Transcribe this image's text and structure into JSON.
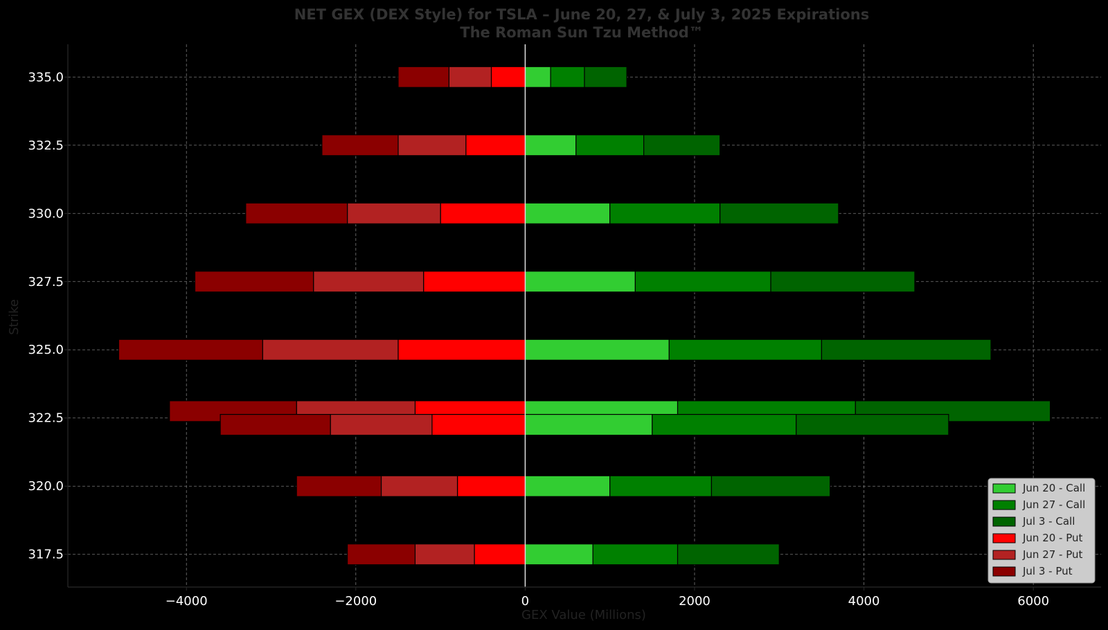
{
  "chart_data": {
    "type": "bar",
    "orientation": "horizontal",
    "stacked": true,
    "title": "NET GEX (DEX Style) for TSLA – June 20, 27, & July 3, 2025 Expirations",
    "subtitle": "The Roman Sun Tzu Method™",
    "xlabel": "GEX Value (Millions)",
    "ylabel": "Strike",
    "xlim": [
      -5400,
      6800
    ],
    "ylim": [
      316.3,
      336.2
    ],
    "xticks": [
      -4000,
      -2000,
      0,
      2000,
      4000,
      6000
    ],
    "xtick_labels": [
      "−4000",
      "−2000",
      "0",
      "2000",
      "4000",
      "6000"
    ],
    "yticks": [
      335.0,
      332.5,
      330.0,
      327.5,
      325.0,
      322.5,
      320.0,
      317.5
    ],
    "ytick_labels": [
      "335.0",
      "332.5",
      "330.0",
      "327.5",
      "325.0",
      "322.5",
      "320.0",
      "317.5"
    ],
    "grid": true,
    "legend_position": "lower-right",
    "groups": [
      {
        "strike": 335.0,
        "offset": 0,
        "calls": [
          300,
          400,
          500
        ],
        "puts": [
          -400,
          -500,
          -600
        ]
      },
      {
        "strike": 332.5,
        "offset": 0,
        "calls": [
          600,
          800,
          900
        ],
        "puts": [
          -700,
          -800,
          -900
        ]
      },
      {
        "strike": 330.0,
        "offset": 0,
        "calls": [
          1000,
          1300,
          1400
        ],
        "puts": [
          -1000,
          -1100,
          -1200
        ]
      },
      {
        "strike": 327.5,
        "offset": 0,
        "calls": [
          1300,
          1600,
          1700
        ],
        "puts": [
          -1200,
          -1300,
          -1400
        ]
      },
      {
        "strike": 325.0,
        "offset": 0,
        "calls": [
          1700,
          1800,
          2000
        ],
        "puts": [
          -1500,
          -1600,
          -1700
        ]
      },
      {
        "strike": 322.5,
        "offset": 0.25,
        "calls": [
          1800,
          2100,
          2300
        ],
        "puts": [
          -1300,
          -1400,
          -1500
        ]
      },
      {
        "strike": 322.5,
        "offset": -0.25,
        "calls": [
          1500,
          1700,
          1800
        ],
        "puts": [
          -1100,
          -1200,
          -1300
        ]
      },
      {
        "strike": 320.0,
        "offset": 0,
        "calls": [
          1000,
          1200,
          1400
        ],
        "puts": [
          -800,
          -900,
          -1000
        ]
      },
      {
        "strike": 317.5,
        "offset": 0,
        "calls": [
          800,
          1000,
          1200
        ],
        "puts": [
          -600,
          -700,
          -800
        ]
      }
    ],
    "series": [
      {
        "name": "Jun 20 - Call",
        "color": "#32cd32"
      },
      {
        "name": "Jun 27 - Call",
        "color": "#008000"
      },
      {
        "name": "Jul 3 - Call",
        "color": "#006400"
      },
      {
        "name": "Jun 20 - Put",
        "color": "#ff0000"
      },
      {
        "name": "Jun 27 - Put",
        "color": "#b22222"
      },
      {
        "name": "Jul 3 - Put",
        "color": "#8b0000"
      }
    ]
  },
  "colors": {
    "background": "#000000",
    "grid": "#7a7a7a",
    "zero_line": "#e0e0e0",
    "legend_bg": "#cccccc"
  }
}
